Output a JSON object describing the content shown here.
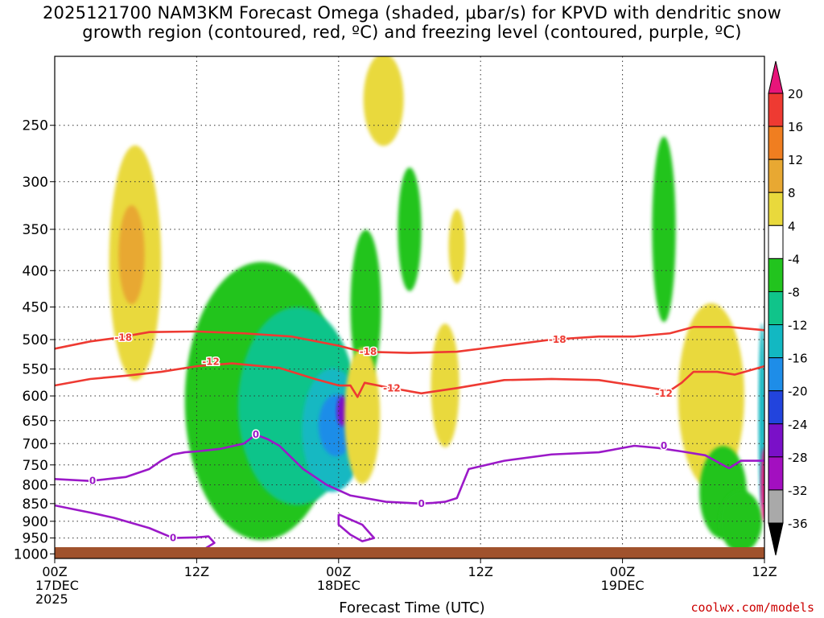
{
  "chart_data": {
    "type": "heatmap",
    "title": "2025121700 NAM3KM Forecast Omega (shaded, μbar/s) for KPVD with dendritic snow\ngrowth region (contoured, red, ºC) and freezing level (contoured, purple, ºC)",
    "xlabel": "Forecast Time (UTC)",
    "x_ticks": [
      {
        "hour": 0,
        "lines": [
          "00Z",
          "17DEC",
          "2025"
        ]
      },
      {
        "hour": 12,
        "lines": [
          "12Z"
        ]
      },
      {
        "hour": 24,
        "lines": [
          "00Z",
          "18DEC"
        ]
      },
      {
        "hour": 36,
        "lines": [
          "12Z"
        ]
      },
      {
        "hour": 48,
        "lines": [
          "00Z",
          "19DEC"
        ]
      },
      {
        "hour": 60,
        "lines": [
          "12Z"
        ]
      }
    ],
    "xlim": [
      0,
      60
    ],
    "y_ticks": [
      250,
      300,
      350,
      400,
      450,
      500,
      550,
      600,
      650,
      700,
      750,
      800,
      850,
      900,
      950,
      1000
    ],
    "ylim_hPa": [
      200,
      1015
    ],
    "y_scale": "log-pressure",
    "colorbar": {
      "labels": [
        "20",
        "16",
        "12",
        "8",
        "4",
        "-4",
        "-8",
        "-12",
        "-16",
        "-20",
        "-24",
        "-28",
        "-32",
        "-36"
      ],
      "bins": [
        {
          "from": 20,
          "to": 99,
          "color": "#e8157a"
        },
        {
          "from": 16,
          "to": 20,
          "color": "#ee3a32"
        },
        {
          "from": 12,
          "to": 16,
          "color": "#f07e20"
        },
        {
          "from": 8,
          "to": 12,
          "color": "#e8a832"
        },
        {
          "from": 4,
          "to": 8,
          "color": "#e9d93c"
        },
        {
          "from": -4,
          "to": 4,
          "color": "#ffffff"
        },
        {
          "from": -8,
          "to": -4,
          "color": "#22c41e"
        },
        {
          "from": -12,
          "to": -8,
          "color": "#10c48a"
        },
        {
          "from": -16,
          "to": -12,
          "color": "#12b8c2"
        },
        {
          "from": -20,
          "to": -16,
          "color": "#1e8de8"
        },
        {
          "from": -24,
          "to": -20,
          "color": "#2244dd"
        },
        {
          "from": -28,
          "to": -24,
          "color": "#7a10c8"
        },
        {
          "from": -32,
          "to": -28,
          "color": "#a30fc0"
        },
        {
          "from": -36,
          "to": -32,
          "color": "#a9a9a9"
        },
        {
          "from": -99,
          "to": -36,
          "color": "#000000"
        }
      ]
    },
    "omega_features": [
      {
        "t": 6.8,
        "p": 390,
        "dt": 2.2,
        "dp": 0.38,
        "value": 6
      },
      {
        "t": 6.5,
        "p": 380,
        "dt": 1.1,
        "dp": 0.16,
        "value": 10
      },
      {
        "t": 17.5,
        "p": 610,
        "dt": 6.5,
        "dp": 0.45,
        "value": -6
      },
      {
        "t": 20.5,
        "p": 620,
        "dt": 5.0,
        "dp": 0.32,
        "value": -10
      },
      {
        "t": 23.5,
        "p": 670,
        "dt": 2.6,
        "dp": 0.2,
        "value": -14
      },
      {
        "t": 23.8,
        "p": 660,
        "dt": 1.5,
        "dp": 0.1,
        "value": -18
      },
      {
        "t": 24.3,
        "p": 630,
        "dt": 0.45,
        "dp": 0.05,
        "value": -26
      },
      {
        "t": 26.3,
        "p": 450,
        "dt": 1.3,
        "dp": 0.25,
        "value": -5
      },
      {
        "t": 26.0,
        "p": 640,
        "dt": 1.5,
        "dp": 0.22,
        "value": 5
      },
      {
        "t": 27.8,
        "p": 230,
        "dt": 1.7,
        "dp": 0.15,
        "value": 5
      },
      {
        "t": 30.0,
        "p": 350,
        "dt": 1.0,
        "dp": 0.2,
        "value": -5
      },
      {
        "t": 33.0,
        "p": 580,
        "dt": 1.2,
        "dp": 0.2,
        "value": 6
      },
      {
        "t": 34.0,
        "p": 370,
        "dt": 0.7,
        "dp": 0.12,
        "value": 5
      },
      {
        "t": 51.5,
        "p": 350,
        "dt": 1.0,
        "dp": 0.3,
        "value": -5
      },
      {
        "t": 55.5,
        "p": 600,
        "dt": 2.8,
        "dp": 0.3,
        "value": 5
      },
      {
        "t": 56.5,
        "p": 820,
        "dt": 2.0,
        "dp": 0.15,
        "value": -6
      },
      {
        "t": 58.0,
        "p": 900,
        "dt": 1.8,
        "dp": 0.1,
        "value": -5
      },
      {
        "t": 59.8,
        "p": 640,
        "dt": 0.3,
        "dp": 0.3,
        "value": -13
      },
      {
        "t": 60.0,
        "p": 800,
        "dt": 0.3,
        "dp": 0.12,
        "value": 22
      }
    ],
    "contours": [
      {
        "level": -18,
        "color": "#ee3a32",
        "label_at": [
          [
            5.8,
            497
          ],
          [
            26.5,
            520
          ],
          [
            42.5,
            500
          ]
        ],
        "points": [
          [
            0,
            515
          ],
          [
            3,
            503
          ],
          [
            5,
            498
          ],
          [
            8,
            488
          ],
          [
            12,
            487
          ],
          [
            16,
            490
          ],
          [
            20,
            495
          ],
          [
            24,
            510
          ],
          [
            26,
            520
          ],
          [
            30,
            522
          ],
          [
            34,
            520
          ],
          [
            38,
            510
          ],
          [
            42,
            500
          ],
          [
            46,
            495
          ],
          [
            49,
            495
          ],
          [
            52,
            490
          ],
          [
            54,
            480
          ],
          [
            57,
            480
          ],
          [
            60,
            485
          ]
        ]
      },
      {
        "level": -12,
        "color": "#ee3a32",
        "label_at": [
          [
            13.2,
            537
          ],
          [
            28.5,
            585
          ],
          [
            51.5,
            595
          ]
        ],
        "points": [
          [
            0,
            580
          ],
          [
            3,
            568
          ],
          [
            6,
            562
          ],
          [
            9,
            555
          ],
          [
            12,
            545
          ],
          [
            15,
            540
          ],
          [
            19,
            548
          ],
          [
            22,
            568
          ],
          [
            24,
            580
          ],
          [
            25,
            580
          ],
          [
            25.6,
            602
          ],
          [
            26.2,
            575
          ],
          [
            28,
            583
          ],
          [
            31,
            595
          ],
          [
            34,
            585
          ],
          [
            38,
            570
          ],
          [
            42,
            568
          ],
          [
            46,
            570
          ],
          [
            49,
            580
          ],
          [
            52,
            590
          ],
          [
            53,
            575
          ],
          [
            54,
            555
          ],
          [
            56,
            555
          ],
          [
            57.5,
            560
          ],
          [
            60,
            545
          ]
        ]
      },
      {
        "level": 0,
        "color": "#9b19c8",
        "label_at": [
          [
            3.2,
            790
          ],
          [
            17,
            680
          ],
          [
            31,
            850
          ],
          [
            51.5,
            705
          ]
        ],
        "points": [
          [
            0,
            785
          ],
          [
            3,
            790
          ],
          [
            6,
            780
          ],
          [
            8,
            760
          ],
          [
            9,
            740
          ],
          [
            10,
            725
          ],
          [
            11,
            720
          ],
          [
            12,
            718
          ],
          [
            14,
            712
          ],
          [
            16,
            700
          ],
          [
            17,
            680
          ],
          [
            18,
            690
          ],
          [
            19,
            705
          ],
          [
            21,
            760
          ],
          [
            23,
            800
          ],
          [
            25,
            828
          ],
          [
            28,
            845
          ],
          [
            31,
            850
          ],
          [
            32,
            848
          ],
          [
            33,
            845
          ],
          [
            34,
            835
          ],
          [
            35,
            760
          ],
          [
            38,
            740
          ],
          [
            42,
            725
          ],
          [
            46,
            720
          ],
          [
            49,
            705
          ],
          [
            51,
            710
          ],
          [
            53,
            718
          ],
          [
            55,
            727
          ],
          [
            57,
            758
          ],
          [
            58,
            740
          ],
          [
            60,
            740
          ]
        ]
      },
      {
        "level": 0,
        "color": "#9b19c8",
        "label_at": [
          [
            10,
            950
          ]
        ],
        "points": [
          [
            0,
            855
          ],
          [
            3,
            875
          ],
          [
            5,
            890
          ],
          [
            8,
            920
          ],
          [
            10,
            950
          ],
          [
            12,
            948
          ],
          [
            13,
            945
          ],
          [
            13.5,
            965
          ],
          [
            12,
            1000
          ]
        ]
      },
      {
        "level": 0,
        "color": "#9b19c8",
        "label_at": [],
        "points": [
          [
            24,
            880
          ],
          [
            26,
            910
          ],
          [
            27,
            950
          ],
          [
            26,
            960
          ],
          [
            25,
            940
          ],
          [
            24,
            910
          ],
          [
            24,
            880
          ]
        ]
      }
    ],
    "grid": "dotted",
    "surface_color": "#a0522d",
    "credit": "coolwx.com/models"
  }
}
